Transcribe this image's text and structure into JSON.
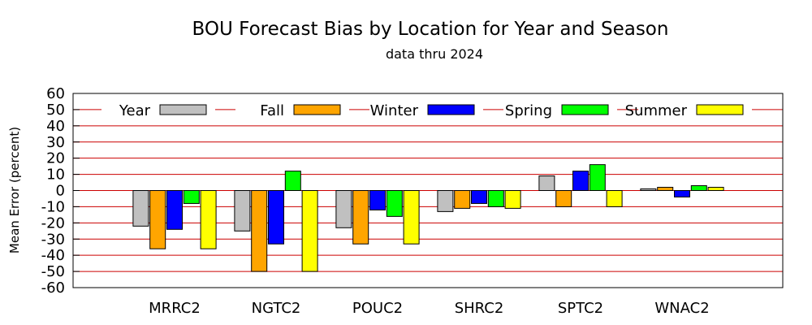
{
  "chart_data": {
    "type": "bar",
    "title": "BOU Forecast Bias by Location for Year and Season",
    "subtitle": "data thru 2024",
    "xlabel": "",
    "ylabel": "Mean Error (percent)",
    "ylim": [
      -60,
      60
    ],
    "yticks": [
      60,
      50,
      40,
      30,
      20,
      10,
      0,
      -10,
      -20,
      -30,
      -40,
      -50,
      -60
    ],
    "ytick_labels": [
      "60",
      "50",
      "40",
      "30",
      "20",
      "10",
      "0",
      "-10",
      "-20",
      "-30",
      "-40",
      "-50",
      "-60"
    ],
    "grid": true,
    "grid_color": "#cc0000",
    "legend_position": "top",
    "categories": [
      "MRRC2",
      "NGTC2",
      "POUC2",
      "SHRC2",
      "SPTC2",
      "WNAC2"
    ],
    "series": [
      {
        "name": "Year",
        "color": "#c0c0c0",
        "values": [
          -22,
          -25,
          -23,
          -13,
          9,
          1
        ]
      },
      {
        "name": "Fall",
        "color": "#ffa500",
        "values": [
          -36,
          -50,
          -33,
          -11,
          -10,
          2
        ]
      },
      {
        "name": "Winter",
        "color": "#0000ff",
        "values": [
          -24,
          -33,
          -12,
          -8,
          12,
          -4
        ]
      },
      {
        "name": "Spring",
        "color": "#00ff00",
        "values": [
          -8,
          12,
          -16,
          -10,
          16,
          3
        ]
      },
      {
        "name": "Summer",
        "color": "#ffff00",
        "values": [
          -36,
          -50,
          -33,
          -11,
          -10,
          2
        ]
      }
    ]
  }
}
